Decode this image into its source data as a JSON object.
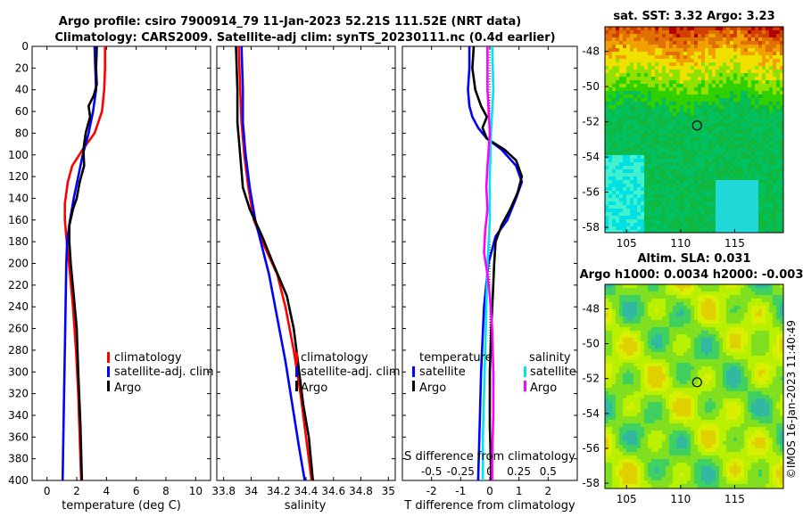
{
  "header": {
    "title_line1": "Argo profile: csiro 7900914_79 11-Jan-2023 52.21S 111.52E (NRT data)",
    "title_line2": "Climatology: CARS2009. Satellite-adj clim: synTS_20230111.nc (0.4d earlier)"
  },
  "sst_panel": {
    "title": "sat. SST: 3.32 Argo: 3.23",
    "xticks": [
      "105",
      "110",
      "115"
    ],
    "yticks": [
      "-48",
      "-50",
      "-52",
      "-54",
      "-56",
      "-58"
    ],
    "lon_range": [
      103,
      119.5
    ],
    "lat_range": [
      -58.3,
      -46.6
    ],
    "marker": {
      "lon": 111.52,
      "lat": -52.21
    }
  },
  "sla_panel": {
    "title_line1": "Altim. SLA: 0.031",
    "title_line2": "Argo h1000: 0.0034 h2000: -0.003",
    "xticks": [
      "105",
      "110",
      "115"
    ],
    "yticks": [
      "-48",
      "-50",
      "-52",
      "-54",
      "-56",
      "-58"
    ],
    "lon_range": [
      103,
      119.5
    ],
    "lat_range": [
      -58.3,
      -46.6
    ],
    "marker": {
      "lon": 111.52,
      "lat": -52.21
    }
  },
  "watermark": "©IMOS 16-Jan-2023 11:40:49",
  "colors": {
    "climatology": "#ff0000",
    "satellite": "#0000ff",
    "argo": "#000000",
    "sal_sat": "#00e5ee",
    "sal_argo": "#ff00ff"
  },
  "chart_data": [
    {
      "type": "line",
      "name": "temperature",
      "xlabel": "temperature (deg C)",
      "xlim": [
        -1,
        11
      ],
      "ylim": [
        0,
        400
      ],
      "xticks": [
        "0",
        "2",
        "4",
        "6",
        "8",
        "10"
      ],
      "yticks": [
        "0",
        "20",
        "40",
        "60",
        "80",
        "100",
        "120",
        "140",
        "160",
        "180",
        "200",
        "220",
        "240",
        "260",
        "280",
        "300",
        "320",
        "340",
        "360",
        "380",
        "400"
      ],
      "legend": [
        "climatology",
        "satellite-adj. clim",
        "Argo"
      ],
      "series": [
        {
          "name": "climatology",
          "points": [
            [
              3.9,
              0
            ],
            [
              3.9,
              20
            ],
            [
              3.85,
              40
            ],
            [
              3.7,
              60
            ],
            [
              3.2,
              80
            ],
            [
              2.4,
              95
            ],
            [
              1.7,
              110
            ],
            [
              1.4,
              125
            ],
            [
              1.2,
              145
            ],
            [
              1.2,
              160
            ],
            [
              1.3,
              175
            ],
            [
              1.4,
              190
            ],
            [
              1.55,
              210
            ],
            [
              1.75,
              240
            ],
            [
              1.95,
              280
            ],
            [
              2.1,
              320
            ],
            [
              2.2,
              360
            ],
            [
              2.3,
              400
            ]
          ]
        },
        {
          "name": "satellite-adj. clim",
          "points": [
            [
              3.2,
              0
            ],
            [
              3.25,
              20
            ],
            [
              3.3,
              40
            ],
            [
              3.1,
              60
            ],
            [
              2.8,
              80
            ],
            [
              2.4,
              100
            ],
            [
              2.1,
              120
            ],
            [
              1.8,
              140
            ],
            [
              1.55,
              160
            ],
            [
              1.35,
              180
            ],
            [
              1.3,
              200
            ],
            [
              1.25,
              240
            ],
            [
              1.2,
              280
            ],
            [
              1.15,
              320
            ],
            [
              1.1,
              360
            ],
            [
              1.05,
              400
            ]
          ]
        },
        {
          "name": "Argo",
          "points": [
            [
              3.35,
              0
            ],
            [
              3.3,
              20
            ],
            [
              3.35,
              35
            ],
            [
              3.15,
              45
            ],
            [
              2.8,
              55
            ],
            [
              2.9,
              65
            ],
            [
              2.6,
              80
            ],
            [
              2.45,
              95
            ],
            [
              2.5,
              110
            ],
            [
              2.2,
              125
            ],
            [
              2.0,
              140
            ],
            [
              1.75,
              150
            ],
            [
              1.5,
              165
            ],
            [
              1.5,
              180
            ],
            [
              1.6,
              200
            ],
            [
              1.8,
              230
            ],
            [
              2.0,
              260
            ],
            [
              2.1,
              300
            ],
            [
              2.25,
              350
            ],
            [
              2.35,
              400
            ]
          ]
        }
      ]
    },
    {
      "type": "line",
      "name": "salinity",
      "xlabel": "salinity",
      "xlim": [
        33.75,
        35.05
      ],
      "ylim": [
        0,
        400
      ],
      "xticks": [
        "33.8",
        "34",
        "34.2",
        "34.4",
        "34.6",
        "34.8",
        "35"
      ],
      "series": [
        {
          "name": "climatology",
          "points": [
            [
              33.91,
              0
            ],
            [
              33.92,
              40
            ],
            [
              33.93,
              70
            ],
            [
              33.95,
              100
            ],
            [
              33.98,
              130
            ],
            [
              34.02,
              160
            ],
            [
              34.1,
              185
            ],
            [
              34.19,
              210
            ],
            [
              34.25,
              240
            ],
            [
              34.31,
              280
            ],
            [
              34.36,
              320
            ],
            [
              34.4,
              360
            ],
            [
              34.44,
              400
            ]
          ]
        },
        {
          "name": "satellite-adj. clim",
          "points": [
            [
              33.93,
              0
            ],
            [
              33.94,
              40
            ],
            [
              33.94,
              70
            ],
            [
              33.96,
              100
            ],
            [
              33.99,
              130
            ],
            [
              34.03,
              160
            ],
            [
              34.07,
              180
            ],
            [
              34.13,
              210
            ],
            [
              34.19,
              250
            ],
            [
              34.25,
              290
            ],
            [
              34.3,
              330
            ],
            [
              34.35,
              370
            ],
            [
              34.39,
              400
            ]
          ]
        },
        {
          "name": "Argo",
          "points": [
            [
              33.89,
              0
            ],
            [
              33.9,
              40
            ],
            [
              33.9,
              70
            ],
            [
              33.92,
              100
            ],
            [
              33.94,
              130
            ],
            [
              33.99,
              150
            ],
            [
              34.08,
              175
            ],
            [
              34.16,
              200
            ],
            [
              34.26,
              230
            ],
            [
              34.31,
              260
            ],
            [
              34.34,
              290
            ],
            [
              34.38,
              330
            ],
            [
              34.42,
              360
            ],
            [
              34.45,
              400
            ]
          ]
        }
      ]
    },
    {
      "type": "line",
      "name": "difference",
      "xlabel": "T difference from climatology",
      "s_axis_label": "S difference from climatology",
      "xlim": [
        -3,
        3
      ],
      "ylim": [
        0,
        400
      ],
      "xticks": [
        "-2",
        "-1",
        "0",
        "1",
        "2"
      ],
      "s_xlim": [
        -0.75,
        0.75
      ],
      "s_ticks": [
        "-0.5",
        "-0.25",
        "0",
        "0.25",
        "0.5"
      ],
      "legend_t_header": "temperature",
      "legend_s_header": "salinity",
      "legend": [
        "satellite",
        "Argo",
        "satellite",
        "Argo"
      ],
      "series": [
        {
          "name": "T satellite",
          "axis": "T",
          "points": [
            [
              -0.7,
              0
            ],
            [
              -0.7,
              20
            ],
            [
              -0.75,
              40
            ],
            [
              -0.7,
              55
            ],
            [
              -0.6,
              65
            ],
            [
              -0.4,
              75
            ],
            [
              -0.1,
              85
            ],
            [
              0.4,
              95
            ],
            [
              0.9,
              110
            ],
            [
              1.1,
              125
            ],
            [
              0.9,
              140
            ],
            [
              0.6,
              160
            ],
            [
              0.2,
              175
            ],
            [
              -0.05,
              200
            ],
            [
              -0.2,
              240
            ],
            [
              -0.3,
              300
            ],
            [
              -0.35,
              350
            ],
            [
              -0.4,
              400
            ]
          ]
        },
        {
          "name": "T Argo",
          "axis": "T",
          "points": [
            [
              -0.55,
              0
            ],
            [
              -0.6,
              20
            ],
            [
              -0.5,
              40
            ],
            [
              -0.3,
              55
            ],
            [
              -0.1,
              65
            ],
            [
              -0.25,
              75
            ],
            [
              -0.1,
              85
            ],
            [
              0.5,
              95
            ],
            [
              0.9,
              105
            ],
            [
              1.1,
              120
            ],
            [
              0.95,
              135
            ],
            [
              0.7,
              150
            ],
            [
              0.4,
              165
            ],
            [
              0.2,
              180
            ],
            [
              0.15,
              200
            ],
            [
              0.1,
              230
            ],
            [
              0.05,
              260
            ],
            [
              0.0,
              300
            ],
            [
              0.0,
              350
            ],
            [
              0.05,
              400
            ]
          ]
        },
        {
          "name": "S satellite",
          "axis": "S",
          "points": [
            [
              0.02,
              0
            ],
            [
              0.03,
              40
            ],
            [
              0.01,
              80
            ],
            [
              0.0,
              120
            ],
            [
              0.0,
              160
            ],
            [
              -0.02,
              200
            ],
            [
              -0.03,
              240
            ],
            [
              -0.04,
              280
            ],
            [
              -0.05,
              320
            ],
            [
              -0.06,
              360
            ],
            [
              -0.06,
              400
            ]
          ]
        },
        {
          "name": "S Argo",
          "axis": "S",
          "points": [
            [
              -0.02,
              0
            ],
            [
              -0.02,
              40
            ],
            [
              0.0,
              80
            ],
            [
              -0.02,
              110
            ],
            [
              -0.03,
              130
            ],
            [
              -0.02,
              150
            ],
            [
              -0.04,
              170
            ],
            [
              -0.05,
              190
            ],
            [
              -0.02,
              210
            ],
            [
              0.0,
              230
            ],
            [
              0.02,
              260
            ],
            [
              0.03,
              300
            ],
            [
              0.03,
              340
            ],
            [
              0.02,
              380
            ],
            [
              0.02,
              400
            ]
          ]
        }
      ]
    }
  ]
}
